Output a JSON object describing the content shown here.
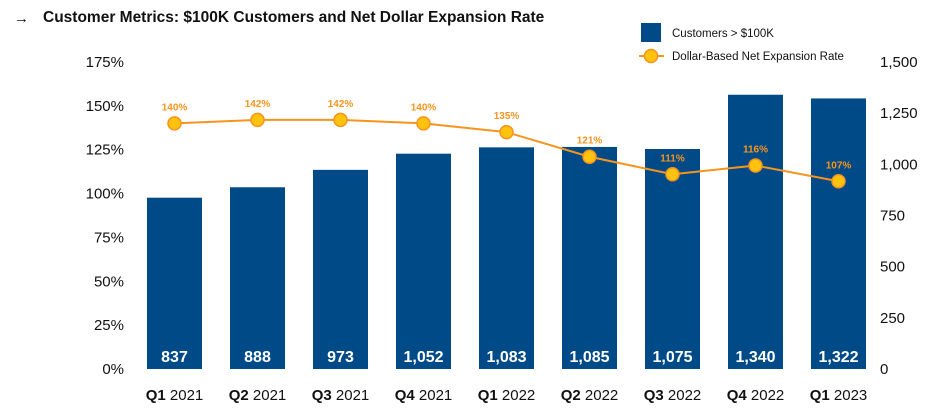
{
  "header": {
    "arrow": "→",
    "title": "Customer Metrics: $100K Customers and Net Dollar Expansion Rate"
  },
  "chart_data": {
    "type": "bar+line",
    "categories": [
      {
        "quarter": "Q1",
        "year": "2021"
      },
      {
        "quarter": "Q2",
        "year": "2021"
      },
      {
        "quarter": "Q3",
        "year": "2021"
      },
      {
        "quarter": "Q4",
        "year": "2021"
      },
      {
        "quarter": "Q1",
        "year": "2022"
      },
      {
        "quarter": "Q2",
        "year": "2022"
      },
      {
        "quarter": "Q3",
        "year": "2022"
      },
      {
        "quarter": "Q4",
        "year": "2022"
      },
      {
        "quarter": "Q1",
        "year": "2023"
      }
    ],
    "series": [
      {
        "name": "Customers > $100K",
        "type": "bar",
        "axis": "right",
        "color": "#004B87",
        "values": [
          837,
          888,
          973,
          1052,
          1083,
          1085,
          1075,
          1340,
          1322
        ],
        "labels": [
          "837",
          "888",
          "973",
          "1,052",
          "1,083",
          "1,085",
          "1,075",
          "1,340",
          "1,322"
        ]
      },
      {
        "name": "Dollar-Based Net Expansion Rate",
        "type": "line",
        "axis": "left",
        "color": "#F7941D",
        "values": [
          140,
          142,
          142,
          140,
          135,
          121,
          111,
          116,
          107
        ],
        "labels": [
          "140%",
          "142%",
          "142%",
          "140%",
          "135%",
          "121%",
          "111%",
          "116%",
          "107%"
        ]
      }
    ],
    "left_axis": {
      "range": [
        0,
        175
      ],
      "ticks": [
        0,
        25,
        50,
        75,
        100,
        125,
        150,
        175
      ],
      "tick_labels": [
        "0%",
        "25%",
        "50%",
        "75%",
        "100%",
        "125%",
        "150%",
        "175%"
      ]
    },
    "right_axis": {
      "range": [
        0,
        1500
      ],
      "ticks": [
        0,
        250,
        500,
        750,
        1000,
        1250,
        1500
      ],
      "tick_labels": [
        "0",
        "250",
        "500",
        "750",
        "1,000",
        "1,250",
        "1,500"
      ]
    },
    "grid": false,
    "legend_position": "top-right"
  }
}
